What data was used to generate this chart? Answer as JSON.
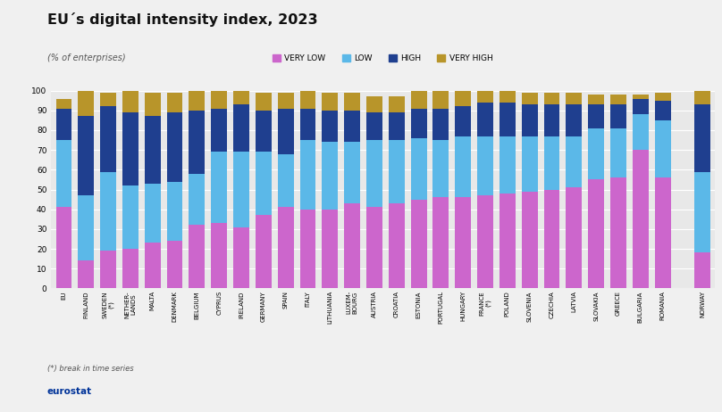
{
  "title": "EU´s digital intensity index, 2023",
  "subtitle": "(% of enterprises)",
  "footnote": "(*) break in time series",
  "categories": [
    "EU",
    "FINLAND",
    "SWEDEN\n(*)",
    "NETHER-\nLANDS",
    "MALTA",
    "DENMARK",
    "BELGIUM",
    "CYPRUS",
    "IRELAND",
    "GERMANY",
    "SPAIN",
    "ITALY",
    "LITHUANIA",
    "LUXEM-\nBOURG",
    "AUSTRIA",
    "CROATIA",
    "ESTONIA",
    "PORTUGAL",
    "HUNGARY",
    "FRANCE\n(*)",
    "POLAND",
    "SLOVENIA",
    "CZECHIA",
    "LATVIA",
    "SLOVAKIA",
    "GREECE",
    "BULGARIA",
    "ROMANIA",
    "NORWAY"
  ],
  "very_low": [
    41,
    14,
    19,
    20,
    23,
    24,
    32,
    33,
    31,
    37,
    41,
    40,
    40,
    43,
    41,
    43,
    45,
    46,
    46,
    47,
    48,
    49,
    50,
    51,
    55,
    56,
    70,
    56,
    18
  ],
  "low": [
    34,
    33,
    40,
    32,
    30,
    30,
    26,
    36,
    38,
    32,
    27,
    35,
    34,
    31,
    34,
    32,
    31,
    29,
    31,
    30,
    29,
    28,
    27,
    26,
    26,
    25,
    18,
    29,
    41
  ],
  "high": [
    16,
    40,
    33,
    37,
    34,
    35,
    32,
    22,
    24,
    21,
    23,
    16,
    16,
    16,
    14,
    14,
    15,
    16,
    15,
    17,
    17,
    16,
    16,
    16,
    12,
    12,
    8,
    10,
    34
  ],
  "very_high": [
    5,
    13,
    7,
    11,
    12,
    10,
    10,
    9,
    7,
    9,
    8,
    9,
    9,
    9,
    8,
    8,
    10,
    9,
    10,
    6,
    6,
    6,
    6,
    6,
    5,
    5,
    2,
    4,
    7
  ],
  "colors": {
    "very_low": "#CC66CC",
    "low": "#5BB8E8",
    "high": "#1F3F8F",
    "very_high": "#B8952A"
  },
  "bg_color": "#F0F0F0",
  "plot_bg": "#E8E8E8",
  "grid_color": "#FFFFFF",
  "ylim": [
    0,
    100
  ],
  "yticks": [
    0,
    10,
    20,
    30,
    40,
    50,
    60,
    70,
    80,
    90,
    100
  ]
}
